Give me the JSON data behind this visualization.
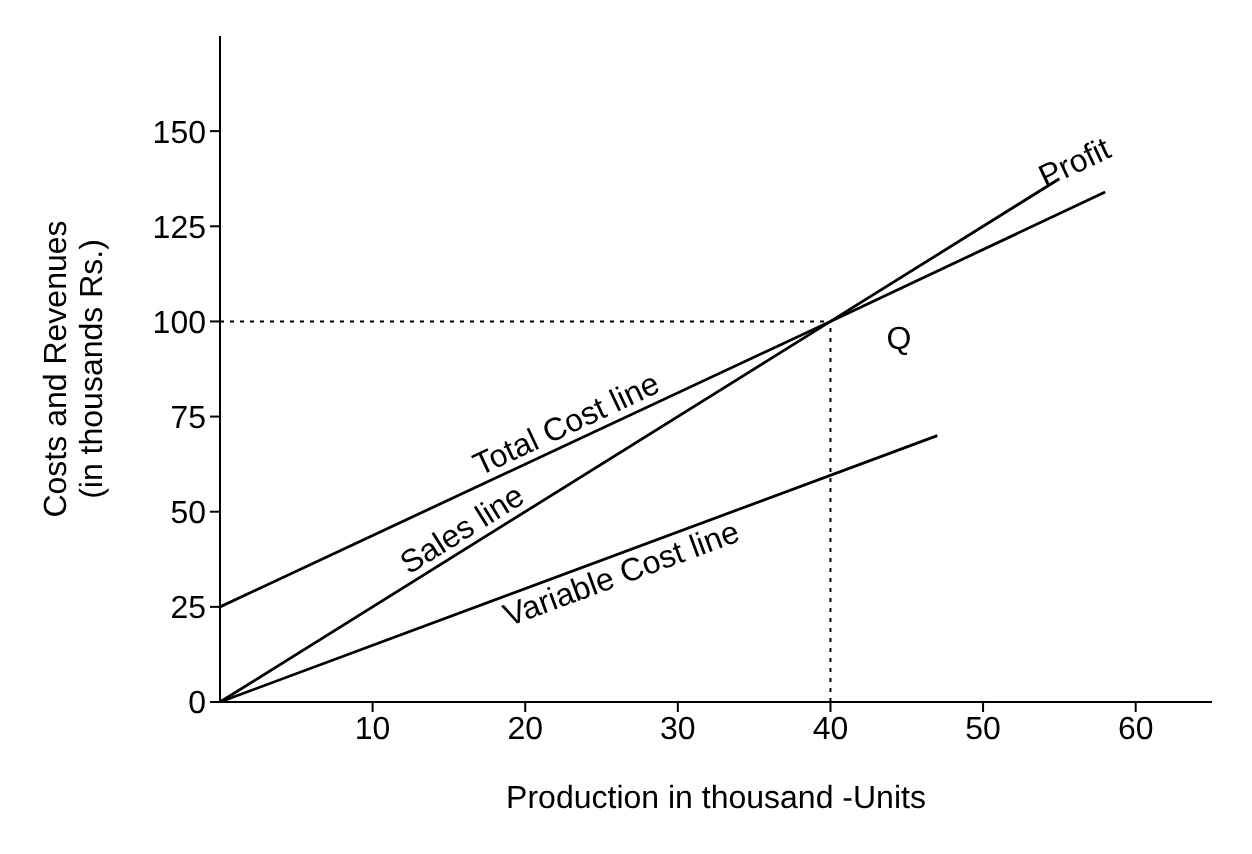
{
  "chart_data": {
    "type": "line",
    "xlabel": "Production in thousand -Units",
    "ylabel": "Costs and Revenues\n(in thousands Rs.)",
    "series": [
      {
        "name": "Total Cost line",
        "color": "#000000",
        "x": [
          0,
          40,
          58
        ],
        "values": [
          25,
          100,
          134
        ]
      },
      {
        "name": "Sales line",
        "color": "#000000",
        "x": [
          0,
          40,
          55
        ],
        "values": [
          0,
          100,
          137.5
        ]
      },
      {
        "name": "Variable Cost line",
        "color": "#000000",
        "x": [
          0,
          47
        ],
        "values": [
          0,
          70
        ]
      }
    ],
    "xlim": [
      0,
      65
    ],
    "xticks": [
      10,
      20,
      30,
      40,
      50,
      60
    ],
    "ylim": [
      0,
      175
    ],
    "yticks": [
      0,
      25,
      50,
      75,
      100,
      125,
      150
    ],
    "ref_lines": [
      {
        "axis": "x",
        "value": 40,
        "line_style": "dotted"
      },
      {
        "axis": "y",
        "value": 100,
        "line_style": "dotted"
      }
    ],
    "annotations": [
      "Profit",
      "Q"
    ],
    "grid": false,
    "legend": false,
    "marker": "none",
    "line_style": "solid"
  }
}
